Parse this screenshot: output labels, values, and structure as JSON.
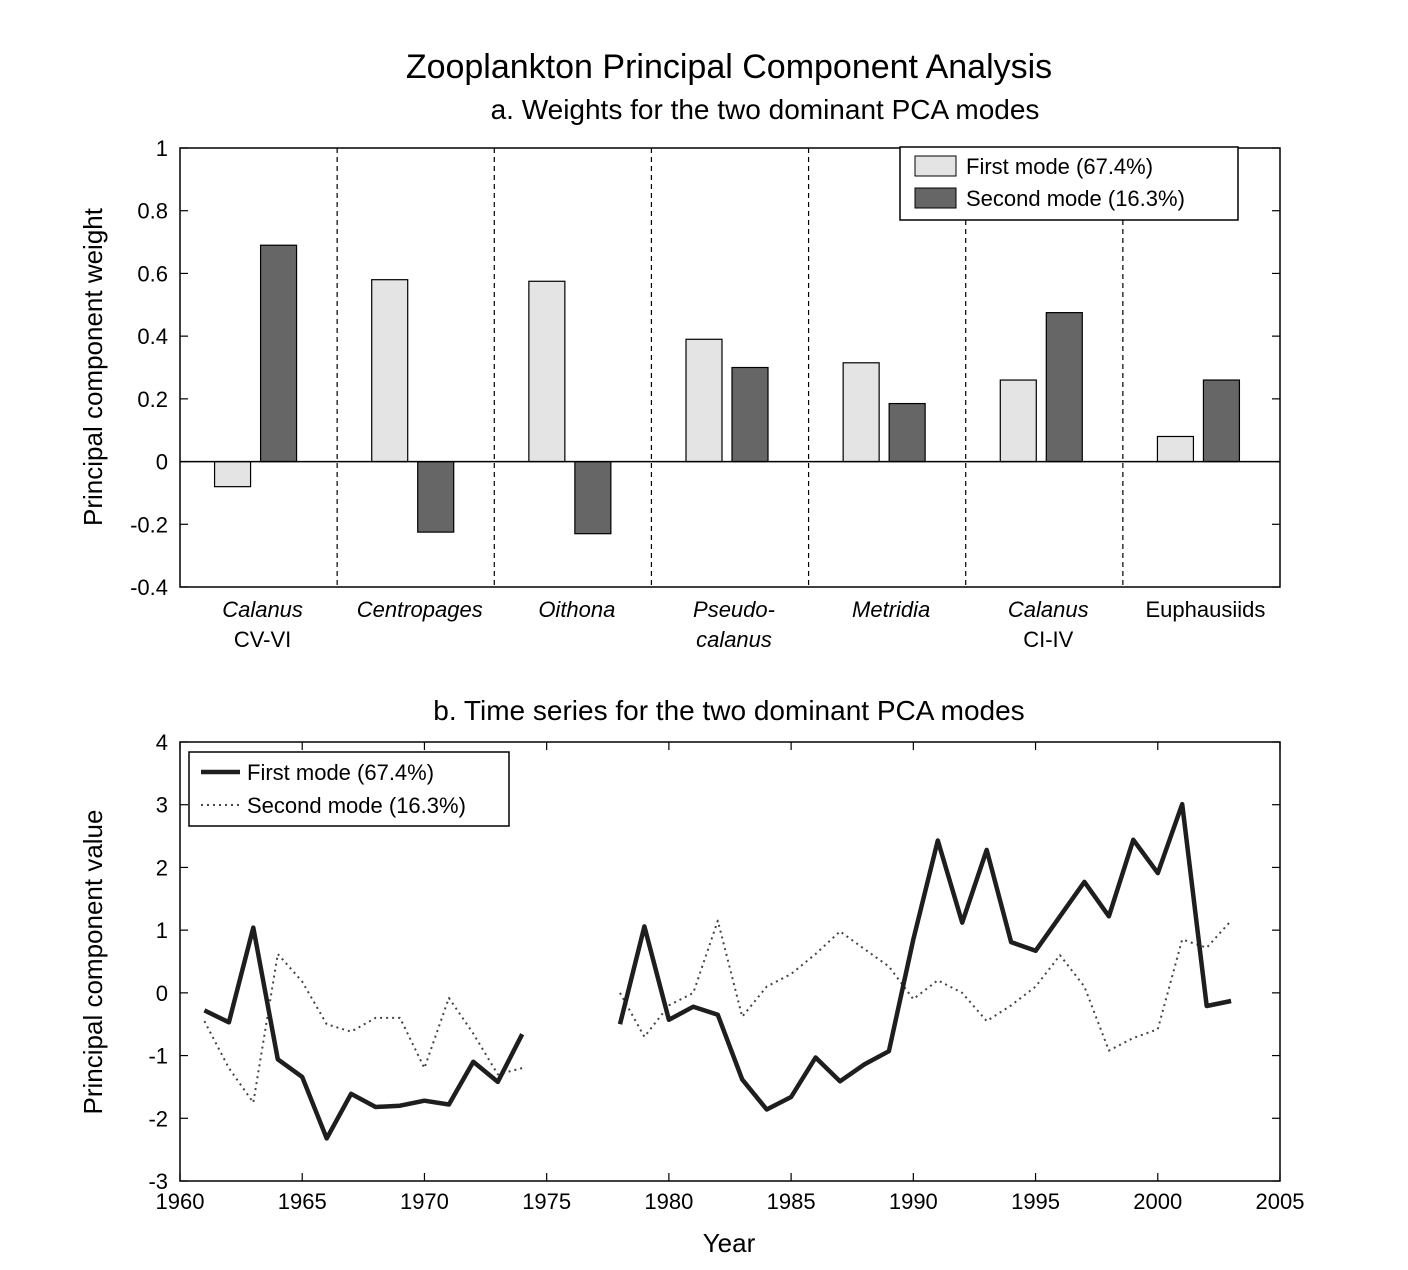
{
  "figure_title": "Zooplankton Principal Component Analysis",
  "colors": {
    "first_mode_fill": "#e4e4e4",
    "second_mode_fill": "#666666",
    "line": "#1e1e1e",
    "axis": "#000000"
  },
  "chart_data": [
    {
      "type": "bar",
      "title": "a. Weights for the two dominant PCA modes",
      "xlabel": "",
      "ylabel": "Principal component weight",
      "ylim": [
        -0.4,
        1
      ],
      "yticks": [
        "1",
        "0.8",
        "0.6",
        "0.4",
        "0.2",
        "0",
        "-0.2",
        "-0.4"
      ],
      "ytick_values": [
        1,
        0.8,
        0.6,
        0.4,
        0.2,
        0,
        -0.2,
        -0.4
      ],
      "categories": [
        {
          "line1": "Calanus",
          "line2": "CV-VI",
          "italic": true
        },
        {
          "line1": "Centropages",
          "line2": "",
          "italic": true
        },
        {
          "line1": "Oithona",
          "line2": "",
          "italic": true
        },
        {
          "line1": "Pseudo-",
          "line2": "calanus",
          "italic": true
        },
        {
          "line1": "Metridia",
          "line2": "",
          "italic": true
        },
        {
          "line1": "Calanus",
          "line2": "CI-IV",
          "italic": true
        },
        {
          "line1": "Euphausiids",
          "line2": "",
          "italic": false
        }
      ],
      "series": [
        {
          "name": "First mode (67.4%)",
          "values": [
            -0.08,
            0.58,
            0.575,
            0.39,
            0.315,
            0.26,
            0.08
          ]
        },
        {
          "name": "Second mode (16.3%)",
          "values": [
            0.69,
            -0.225,
            -0.23,
            0.3,
            0.185,
            0.475,
            0.26
          ]
        }
      ],
      "legend_position": "top-right",
      "grid": false
    },
    {
      "type": "line",
      "title": "b. Time series for the two dominant PCA modes",
      "xlabel": "Year",
      "ylabel": "Principal component value",
      "xlim": [
        1960,
        2005
      ],
      "ylim": [
        -3,
        4
      ],
      "xticks": [
        "1960",
        "1965",
        "1970",
        "1975",
        "1980",
        "1985",
        "1990",
        "1995",
        "2000",
        "2005"
      ],
      "xtick_values": [
        1960,
        1965,
        1970,
        1975,
        1980,
        1985,
        1990,
        1995,
        2000,
        2005
      ],
      "yticks": [
        "4",
        "3",
        "2",
        "1",
        "0",
        "-1",
        "-2",
        "-3"
      ],
      "ytick_values": [
        4,
        3,
        2,
        1,
        0,
        -1,
        -2,
        -3
      ],
      "series": [
        {
          "name": "First mode (67.4%)",
          "style": "solid",
          "segments": [
            {
              "x": [
                1961,
                1962,
                1963,
                1964,
                1965,
                1966,
                1967,
                1968,
                1969,
                1970,
                1971,
                1972,
                1973,
                1974
              ],
              "y": [
                -0.28,
                -0.47,
                1.04,
                -1.06,
                -1.34,
                -2.32,
                -1.61,
                -1.82,
                -1.8,
                -1.72,
                -1.78,
                -1.1,
                -1.42,
                -0.66
              ]
            },
            {
              "x": [
                1978,
                1979,
                1980,
                1981,
                1982,
                1983,
                1984,
                1985,
                1986,
                1987,
                1988,
                1989,
                1990,
                1991,
                1992,
                1993,
                1994,
                1995,
                1996,
                1997,
                1998,
                1999,
                2000,
                2001,
                2002,
                2003
              ],
              "y": [
                -0.5,
                1.06,
                -0.43,
                -0.22,
                -0.35,
                -1.38,
                -1.86,
                -1.66,
                -1.03,
                -1.41,
                -1.14,
                -0.93,
                0.85,
                2.43,
                1.12,
                2.28,
                0.81,
                0.67,
                1.22,
                1.77,
                1.22,
                2.44,
                1.91,
                3.01,
                -0.21,
                -0.13
              ]
            }
          ]
        },
        {
          "name": "Second mode (16.3%)",
          "style": "dotted",
          "segments": [
            {
              "x": [
                1961,
                1962,
                1963,
                1964,
                1965,
                1966,
                1967,
                1968,
                1969,
                1970,
                1971,
                1972,
                1973,
                1974
              ],
              "y": [
                -0.45,
                -1.2,
                -1.75,
                0.62,
                0.18,
                -0.5,
                -0.62,
                -0.4,
                -0.4,
                -1.2,
                -0.08,
                -0.65,
                -1.3,
                -1.2
              ]
            },
            {
              "x": [
                1978,
                1979,
                1980,
                1981,
                1982,
                1983,
                1984,
                1985,
                1986,
                1987,
                1988,
                1989,
                1990,
                1991,
                1992,
                1993,
                1994,
                1995,
                1996,
                1997,
                1998,
                1999,
                2000,
                2001,
                2002,
                2003
              ],
              "y": [
                0.0,
                -0.7,
                -0.2,
                0.0,
                1.15,
                -0.38,
                0.1,
                0.3,
                0.62,
                0.98,
                0.7,
                0.42,
                -0.1,
                0.2,
                0.0,
                -0.45,
                -0.2,
                0.1,
                0.6,
                0.1,
                -0.92,
                -0.72,
                -0.58,
                0.85,
                0.72,
                1.15
              ]
            }
          ]
        }
      ],
      "legend_position": "top-left",
      "grid": false
    }
  ]
}
